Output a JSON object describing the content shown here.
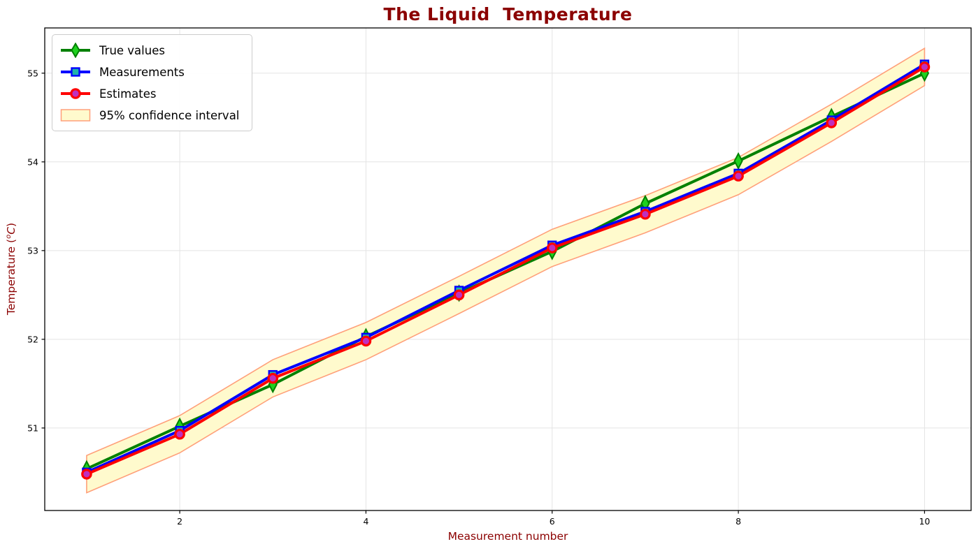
{
  "colors": {
    "title": "#8b0000",
    "axis_label": "#8b0000",
    "tick_label": "#000000",
    "grid": "#e4e4e4",
    "spine": "#000000",
    "background": "#ffffff"
  },
  "chart_data": {
    "type": "line",
    "title": "The Liquid  Temperature",
    "xlabel": "Measurement number",
    "ylabel": "Temperature (°C)",
    "ylabel_parts": {
      "prefix": "Temperature (",
      "sup": "o",
      "unit": "C",
      "close": ")"
    },
    "x": [
      1,
      2,
      3,
      4,
      5,
      6,
      7,
      8,
      9,
      10
    ],
    "series": [
      {
        "name": "True values",
        "line_color": "#008000",
        "marker": "diamond",
        "marker_fill": "#1ed11e",
        "marker_edge": "#008000",
        "values": [
          50.54,
          51.02,
          51.49,
          52.03,
          52.52,
          52.99,
          53.53,
          54.01,
          54.51,
          55.0
        ]
      },
      {
        "name": "Measurements",
        "line_color": "#0000ff",
        "marker": "square",
        "marker_fill": "#20b2aa",
        "marker_edge": "#0000ff",
        "values": [
          50.5,
          50.97,
          51.6,
          52.02,
          52.55,
          53.06,
          53.44,
          53.87,
          54.47,
          55.1
        ]
      },
      {
        "name": "Estimates",
        "line_color": "#ff0000",
        "marker": "circle",
        "marker_fill": "#bf2fbf",
        "marker_edge": "#ff0000",
        "values": [
          50.48,
          50.93,
          51.56,
          51.98,
          52.5,
          53.03,
          53.41,
          53.84,
          54.44,
          55.07
        ]
      }
    ],
    "band": {
      "name": "95% confidence interval",
      "fill": "#fffacd",
      "edge": "#ffa07a",
      "upper": [
        50.69,
        51.14,
        51.77,
        52.19,
        52.71,
        53.24,
        53.62,
        54.05,
        54.65,
        55.28
      ],
      "lower": [
        50.27,
        50.72,
        51.35,
        51.77,
        52.29,
        52.82,
        53.2,
        53.63,
        54.23,
        54.86
      ]
    },
    "xlim": [
      0.55,
      10.5
    ],
    "ylim": [
      50.07,
      55.51
    ],
    "xticks": [
      2,
      4,
      6,
      8,
      10
    ],
    "yticks": [
      51,
      52,
      53,
      54,
      55
    ],
    "grid": true,
    "legend_position": "upper left"
  }
}
